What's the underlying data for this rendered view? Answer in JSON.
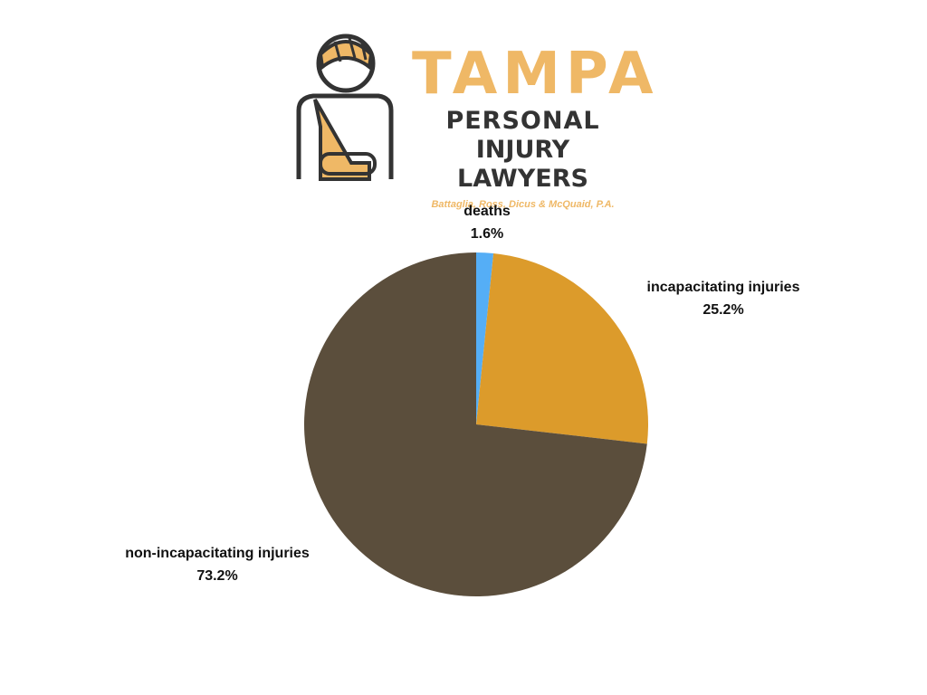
{
  "logo": {
    "line1": "TAMPA",
    "line2": "PERSONAL",
    "line3": "INJURY LAWYERS",
    "firm": "Battaglia, Ross, Dicus & McQuaid, P.A.",
    "icon": "injured-person-icon",
    "accent_color": "#efb866",
    "text_color": "#333333"
  },
  "chart_data": {
    "type": "pie",
    "title": "",
    "slices": [
      {
        "label": "deaths",
        "value": 1.6,
        "display": "1.6%",
        "color": "#55aef6"
      },
      {
        "label": "incapacitating injuries",
        "value": 25.2,
        "display": "25.2%",
        "color": "#dc9b2b"
      },
      {
        "label": "non-incapacitating injuries",
        "value": 73.2,
        "display": "73.2%",
        "color": "#5b4e3c"
      }
    ],
    "start_angle": "12 o'clock",
    "direction": "clockwise",
    "legend": "none",
    "labels": "outside"
  }
}
